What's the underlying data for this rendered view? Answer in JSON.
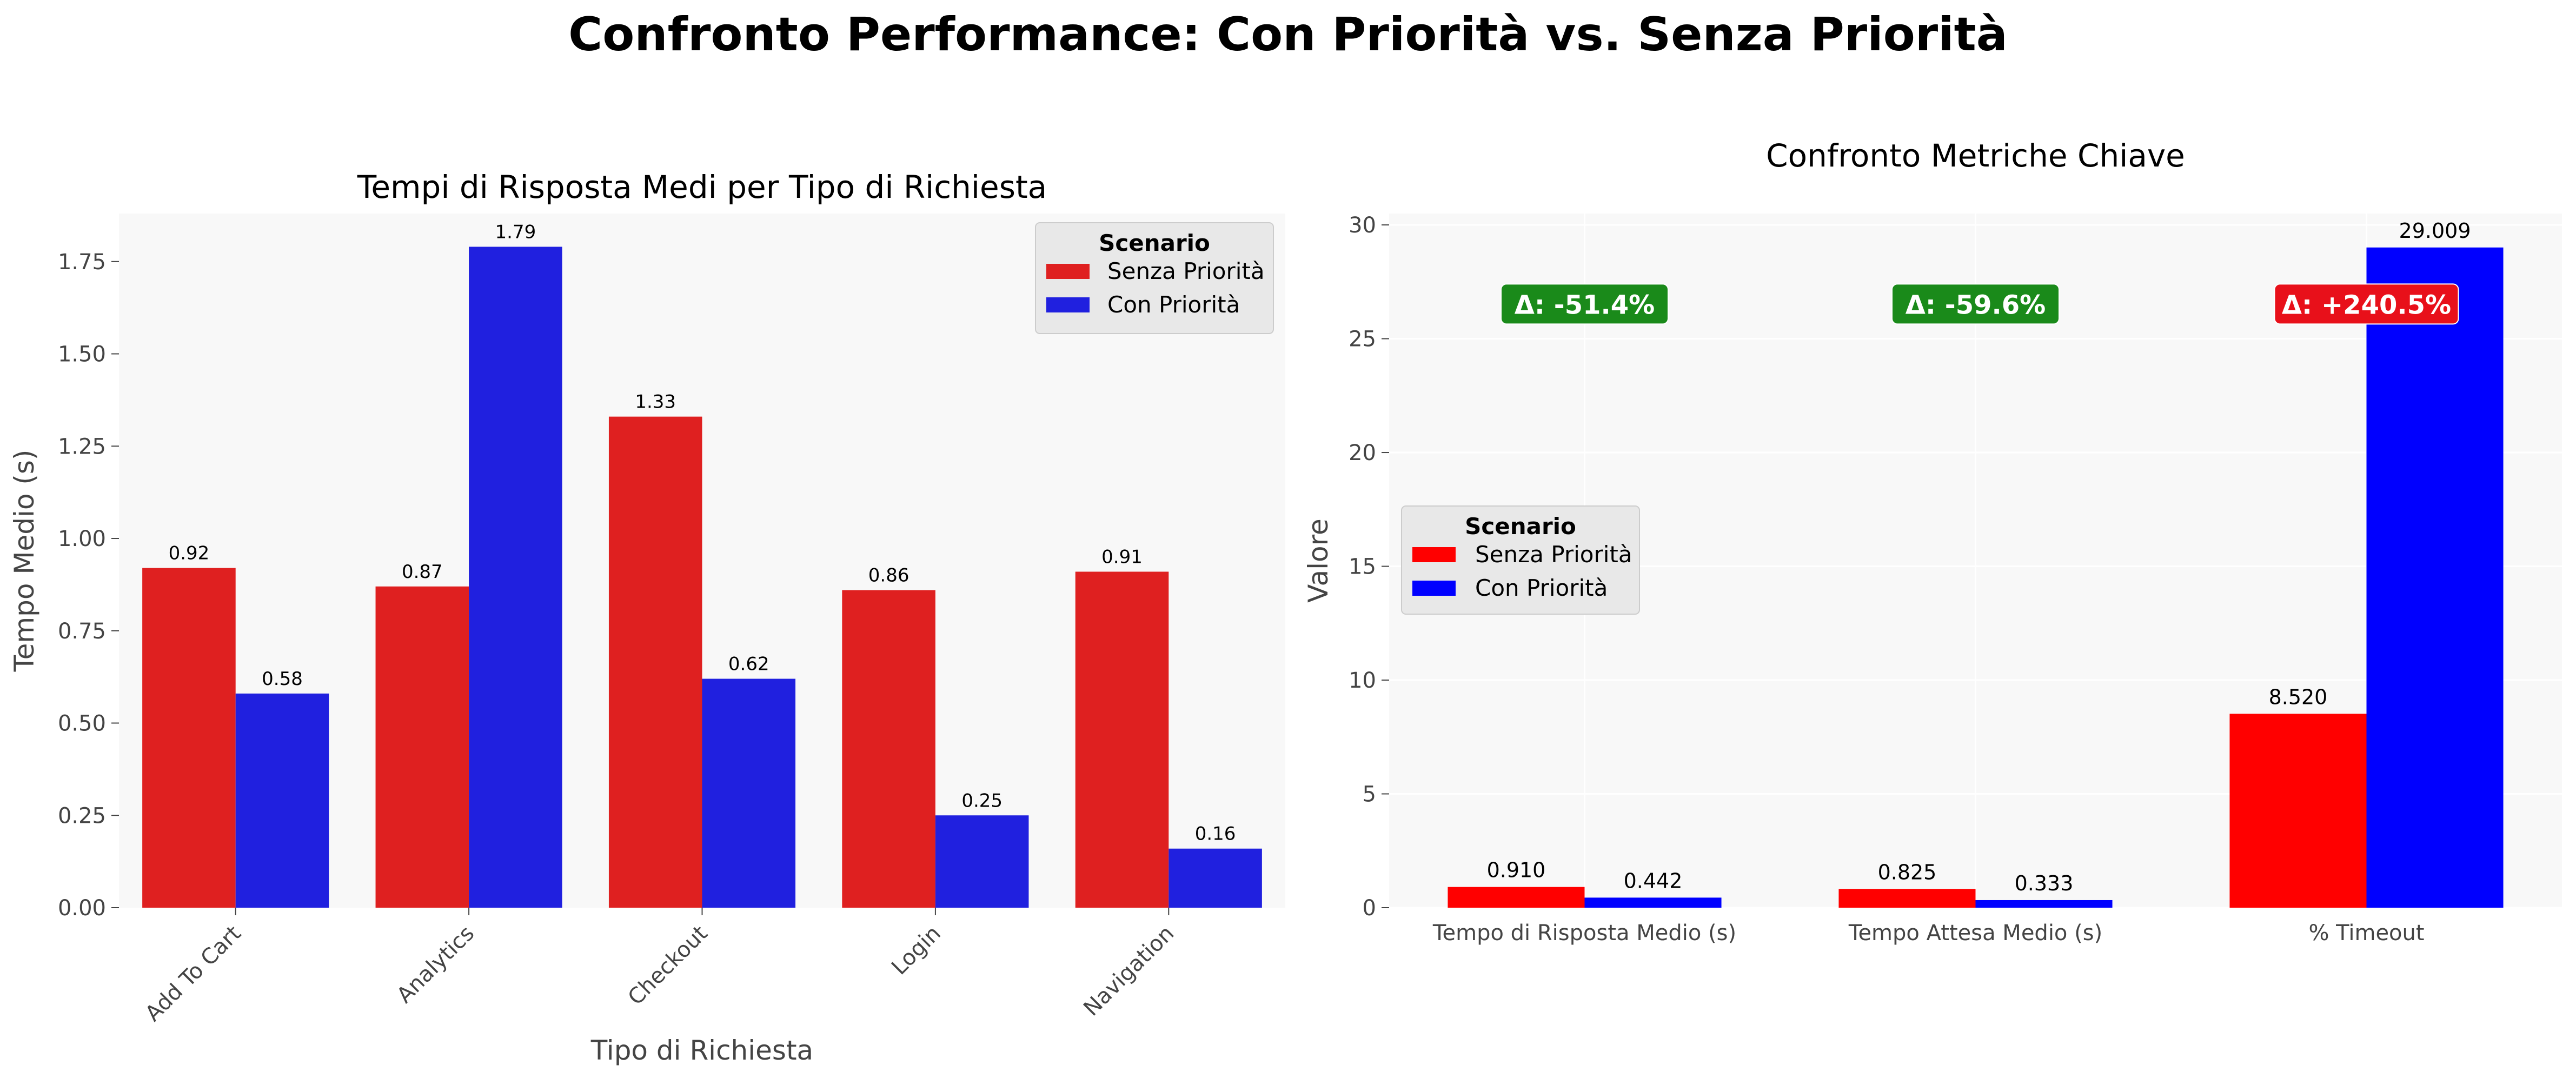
{
  "figure": {
    "suptitle": "Confronto Performance: Con Priorità vs. Senza Priorità"
  },
  "chart_data": [
    {
      "type": "bar",
      "title": "Tempi di Risposta Medi per Tipo di Richiesta",
      "xlabel": "Tipo di Richiesta",
      "ylabel": "Tempo Medio (s)",
      "categories": [
        "Add To Cart",
        "Analytics",
        "Checkout",
        "Login",
        "Navigation"
      ],
      "series": [
        {
          "name": "Senza Priorità",
          "values": [
            0.92,
            0.87,
            1.33,
            0.86,
            0.91
          ],
          "color": "#df2020"
        },
        {
          "name": "Con Priorità",
          "values": [
            0.58,
            1.79,
            0.62,
            0.25,
            0.16
          ],
          "color": "#2020df"
        }
      ],
      "data_labels": [
        [
          "0.92",
          "0.87",
          "1.33",
          "0.86",
          "0.91"
        ],
        [
          "0.58",
          "1.79",
          "0.62",
          "0.25",
          "0.16"
        ]
      ],
      "ylim": [
        0,
        1.88
      ],
      "yticks": [
        "0.00",
        "0.25",
        "0.50",
        "0.75",
        "1.00",
        "1.25",
        "1.50",
        "1.75"
      ],
      "legend": {
        "title": "Scenario",
        "placement": "upper right"
      },
      "grid": false,
      "background": "#f8f8f8"
    },
    {
      "type": "bar",
      "title": "Confronto Metriche Chiave",
      "xlabel": "",
      "ylabel": "Valore",
      "categories": [
        "Tempo di Risposta Medio (s)",
        "Tempo Attesa Medio (s)",
        "% Timeout"
      ],
      "series": [
        {
          "name": "Senza Priorità",
          "values": [
            0.91,
            0.825,
            8.52
          ],
          "color": "#ff0000"
        },
        {
          "name": "Con Priorità",
          "values": [
            0.442,
            0.333,
            29.009
          ],
          "color": "#0000ff"
        }
      ],
      "data_labels": [
        [
          "0.910",
          "0.825",
          "8.520"
        ],
        [
          "0.442",
          "0.333",
          "29.009"
        ]
      ],
      "ylim": [
        0,
        30.5
      ],
      "yticks": [
        "0",
        "5",
        "10",
        "15",
        "20",
        "25",
        "30"
      ],
      "annotations": [
        {
          "text": "Δ: -51.4%",
          "color": "#1a8a1a",
          "y": 26.5
        },
        {
          "text": "Δ: -59.6%",
          "color": "#1a8a1a",
          "y": 26.5
        },
        {
          "text": "Δ: +240.5%",
          "color": "#e8101a",
          "y": 26.5
        }
      ],
      "legend": {
        "title": "Scenario",
        "placement": "center left"
      },
      "grid": true,
      "background": "#f8f8f8"
    }
  ]
}
